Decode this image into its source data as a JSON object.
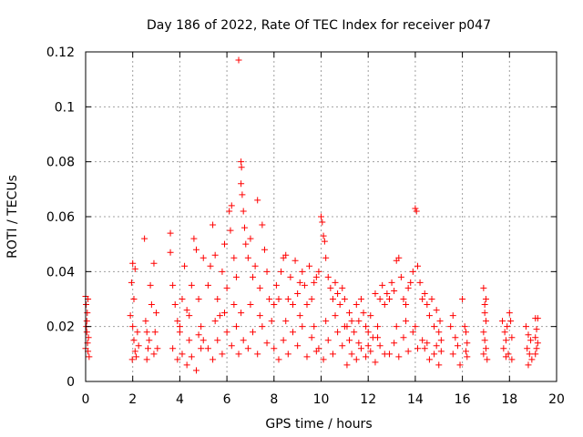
{
  "chart_data": {
    "type": "scatter",
    "title": "Day 186 of 2022, Rate Of TEC Index for receiver p047",
    "xlabel": "GPS time / hours",
    "ylabel": "ROTI / TECUs",
    "xlim": [
      0,
      20
    ],
    "ylim": [
      0,
      0.12
    ],
    "xticks": [
      0,
      2,
      4,
      6,
      8,
      10,
      12,
      14,
      16,
      18,
      20
    ],
    "xtick_labels": [
      "0",
      "2",
      "4",
      "6",
      "8",
      "10",
      "12",
      "14",
      "16",
      "18",
      "20"
    ],
    "yticks": [
      0,
      0.02,
      0.04,
      0.06,
      0.08,
      0.1,
      0.12
    ],
    "ytick_labels": [
      "0",
      "0.02",
      "0.04",
      "0.06",
      "0.08",
      "0.1",
      "0.12"
    ],
    "grid": true,
    "marker": "plus",
    "color": "#ff0000",
    "series": [
      {
        "name": "ROTI",
        "points": [
          [
            0.0,
            0.031
          ],
          [
            0.02,
            0.028
          ],
          [
            0.05,
            0.022
          ],
          [
            0.05,
            0.018
          ],
          [
            0.08,
            0.014
          ],
          [
            0.1,
            0.03
          ],
          [
            0.1,
            0.011
          ],
          [
            0.12,
            0.016
          ],
          [
            0.15,
            0.009
          ],
          [
            0.0,
            0.012
          ],
          [
            0.03,
            0.02
          ],
          [
            0.07,
            0.025
          ],
          [
            1.9,
            0.024
          ],
          [
            1.95,
            0.036
          ],
          [
            2.0,
            0.043
          ],
          [
            2.0,
            0.02
          ],
          [
            2.05,
            0.015
          ],
          [
            2.1,
            0.041
          ],
          [
            2.1,
            0.011
          ],
          [
            2.15,
            0.009
          ],
          [
            2.2,
            0.018
          ],
          [
            2.25,
            0.013
          ],
          [
            2.05,
            0.03
          ],
          [
            1.98,
            0.008
          ],
          [
            2.5,
            0.052
          ],
          [
            2.55,
            0.022
          ],
          [
            2.6,
            0.018
          ],
          [
            2.65,
            0.012
          ],
          [
            2.7,
            0.015
          ],
          [
            2.75,
            0.035
          ],
          [
            2.8,
            0.028
          ],
          [
            2.9,
            0.043
          ],
          [
            2.9,
            0.01
          ],
          [
            2.95,
            0.018
          ],
          [
            3.0,
            0.025
          ],
          [
            3.05,
            0.012
          ],
          [
            2.6,
            0.008
          ],
          [
            3.6,
            0.054
          ],
          [
            3.6,
            0.047
          ],
          [
            3.7,
            0.035
          ],
          [
            3.8,
            0.028
          ],
          [
            3.9,
            0.022
          ],
          [
            4.0,
            0.018
          ],
          [
            4.1,
            0.03
          ],
          [
            4.2,
            0.042
          ],
          [
            4.3,
            0.026
          ],
          [
            4.4,
            0.015
          ],
          [
            4.5,
            0.035
          ],
          [
            4.6,
            0.052
          ],
          [
            4.7,
            0.048
          ],
          [
            4.8,
            0.03
          ],
          [
            4.9,
            0.02
          ],
          [
            5.0,
            0.045
          ],
          [
            3.7,
            0.012
          ],
          [
            3.9,
            0.008
          ],
          [
            4.1,
            0.01
          ],
          [
            4.3,
            0.006
          ],
          [
            4.5,
            0.009
          ],
          [
            4.7,
            0.004
          ],
          [
            4.9,
            0.012
          ],
          [
            5.0,
            0.015
          ],
          [
            4.0,
            0.02
          ],
          [
            4.4,
            0.024
          ],
          [
            4.8,
            0.017
          ],
          [
            5.2,
            0.035
          ],
          [
            5.3,
            0.042
          ],
          [
            5.4,
            0.057
          ],
          [
            5.5,
            0.046
          ],
          [
            5.6,
            0.03
          ],
          [
            5.7,
            0.024
          ],
          [
            5.8,
            0.04
          ],
          [
            5.9,
            0.05
          ],
          [
            6.0,
            0.034
          ],
          [
            6.1,
            0.062
          ],
          [
            6.15,
            0.055
          ],
          [
            6.2,
            0.064
          ],
          [
            6.3,
            0.045
          ],
          [
            6.4,
            0.038
          ],
          [
            5.2,
            0.012
          ],
          [
            5.4,
            0.008
          ],
          [
            5.6,
            0.015
          ],
          [
            5.8,
            0.01
          ],
          [
            6.0,
            0.018
          ],
          [
            6.2,
            0.013
          ],
          [
            6.4,
            0.02
          ],
          [
            5.5,
            0.022
          ],
          [
            5.9,
            0.025
          ],
          [
            6.3,
            0.028
          ],
          [
            6.5,
            0.117
          ],
          [
            6.6,
            0.08
          ],
          [
            6.62,
            0.078
          ],
          [
            6.6,
            0.072
          ],
          [
            6.65,
            0.068
          ],
          [
            6.7,
            0.062
          ],
          [
            6.75,
            0.056
          ],
          [
            6.8,
            0.05
          ],
          [
            6.9,
            0.045
          ],
          [
            7.0,
            0.052
          ],
          [
            7.1,
            0.038
          ],
          [
            7.2,
            0.042
          ],
          [
            7.3,
            0.066
          ],
          [
            7.4,
            0.034
          ],
          [
            7.5,
            0.057
          ],
          [
            7.6,
            0.048
          ],
          [
            7.7,
            0.04
          ],
          [
            7.8,
            0.03
          ],
          [
            6.5,
            0.01
          ],
          [
            6.7,
            0.015
          ],
          [
            6.9,
            0.012
          ],
          [
            7.1,
            0.018
          ],
          [
            7.3,
            0.01
          ],
          [
            7.5,
            0.02
          ],
          [
            7.7,
            0.014
          ],
          [
            7.9,
            0.022
          ],
          [
            6.6,
            0.025
          ],
          [
            7.0,
            0.028
          ],
          [
            7.4,
            0.024
          ],
          [
            8.0,
            0.028
          ],
          [
            8.1,
            0.035
          ],
          [
            8.2,
            0.03
          ],
          [
            8.3,
            0.04
          ],
          [
            8.4,
            0.045
          ],
          [
            8.5,
            0.046
          ],
          [
            8.6,
            0.03
          ],
          [
            8.7,
            0.038
          ],
          [
            8.8,
            0.028
          ],
          [
            8.9,
            0.044
          ],
          [
            9.0,
            0.032
          ],
          [
            9.1,
            0.036
          ],
          [
            9.2,
            0.04
          ],
          [
            9.3,
            0.035
          ],
          [
            9.4,
            0.028
          ],
          [
            9.5,
            0.042
          ],
          [
            9.6,
            0.03
          ],
          [
            9.7,
            0.036
          ],
          [
            9.8,
            0.038
          ],
          [
            8.0,
            0.012
          ],
          [
            8.2,
            0.008
          ],
          [
            8.4,
            0.015
          ],
          [
            8.6,
            0.01
          ],
          [
            8.8,
            0.018
          ],
          [
            9.0,
            0.013
          ],
          [
            9.2,
            0.02
          ],
          [
            9.4,
            0.009
          ],
          [
            9.6,
            0.016
          ],
          [
            9.8,
            0.011
          ],
          [
            8.5,
            0.022
          ],
          [
            9.1,
            0.024
          ],
          [
            9.7,
            0.02
          ],
          [
            9.9,
            0.04
          ],
          [
            10.0,
            0.06
          ],
          [
            10.05,
            0.058
          ],
          [
            10.1,
            0.053
          ],
          [
            10.15,
            0.051
          ],
          [
            10.2,
            0.045
          ],
          [
            10.3,
            0.038
          ],
          [
            10.4,
            0.034
          ],
          [
            10.5,
            0.03
          ],
          [
            10.6,
            0.036
          ],
          [
            10.7,
            0.032
          ],
          [
            10.8,
            0.028
          ],
          [
            10.9,
            0.034
          ],
          [
            11.0,
            0.03
          ],
          [
            9.9,
            0.012
          ],
          [
            10.1,
            0.008
          ],
          [
            10.3,
            0.015
          ],
          [
            10.5,
            0.01
          ],
          [
            10.7,
            0.018
          ],
          [
            10.9,
            0.013
          ],
          [
            11.0,
            0.02
          ],
          [
            10.2,
            0.022
          ],
          [
            10.6,
            0.024
          ],
          [
            11.1,
            0.02
          ],
          [
            11.2,
            0.025
          ],
          [
            11.3,
            0.022
          ],
          [
            11.4,
            0.018
          ],
          [
            11.5,
            0.028
          ],
          [
            11.6,
            0.022
          ],
          [
            11.7,
            0.03
          ],
          [
            11.8,
            0.025
          ],
          [
            11.9,
            0.02
          ],
          [
            12.0,
            0.018
          ],
          [
            12.1,
            0.024
          ],
          [
            12.2,
            0.016
          ],
          [
            12.3,
            0.032
          ],
          [
            12.4,
            0.02
          ],
          [
            12.5,
            0.03
          ],
          [
            12.6,
            0.035
          ],
          [
            12.7,
            0.028
          ],
          [
            12.8,
            0.032
          ],
          [
            11.1,
            0.006
          ],
          [
            11.3,
            0.01
          ],
          [
            11.5,
            0.008
          ],
          [
            11.7,
            0.012
          ],
          [
            11.9,
            0.009
          ],
          [
            12.1,
            0.011
          ],
          [
            12.3,
            0.007
          ],
          [
            12.5,
            0.013
          ],
          [
            12.7,
            0.01
          ],
          [
            11.2,
            0.015
          ],
          [
            11.6,
            0.014
          ],
          [
            12.0,
            0.013
          ],
          [
            12.4,
            0.016
          ],
          [
            12.9,
            0.03
          ],
          [
            13.0,
            0.036
          ],
          [
            13.1,
            0.033
          ],
          [
            13.2,
            0.044
          ],
          [
            13.3,
            0.045
          ],
          [
            13.4,
            0.038
          ],
          [
            13.5,
            0.03
          ],
          [
            13.6,
            0.028
          ],
          [
            13.7,
            0.034
          ],
          [
            13.8,
            0.036
          ],
          [
            13.9,
            0.04
          ],
          [
            14.0,
            0.063
          ],
          [
            14.05,
            0.062
          ],
          [
            14.1,
            0.042
          ],
          [
            14.2,
            0.036
          ],
          [
            14.3,
            0.03
          ],
          [
            12.9,
            0.01
          ],
          [
            13.1,
            0.014
          ],
          [
            13.3,
            0.009
          ],
          [
            13.5,
            0.016
          ],
          [
            13.7,
            0.011
          ],
          [
            13.9,
            0.018
          ],
          [
            14.1,
            0.012
          ],
          [
            14.3,
            0.015
          ],
          [
            13.2,
            0.02
          ],
          [
            13.6,
            0.022
          ],
          [
            14.0,
            0.02
          ],
          [
            14.4,
            0.032
          ],
          [
            14.5,
            0.028
          ],
          [
            14.6,
            0.024
          ],
          [
            14.7,
            0.03
          ],
          [
            14.8,
            0.02
          ],
          [
            14.9,
            0.026
          ],
          [
            15.0,
            0.018
          ],
          [
            15.05,
            0.022
          ],
          [
            15.1,
            0.015
          ],
          [
            14.4,
            0.012
          ],
          [
            14.6,
            0.008
          ],
          [
            14.8,
            0.01
          ],
          [
            15.0,
            0.006
          ],
          [
            15.1,
            0.011
          ],
          [
            14.5,
            0.014
          ],
          [
            14.9,
            0.013
          ],
          [
            15.5,
            0.02
          ],
          [
            15.6,
            0.024
          ],
          [
            15.6,
            0.01
          ],
          [
            15.7,
            0.016
          ],
          [
            15.8,
            0.013
          ],
          [
            15.9,
            0.006
          ],
          [
            16.0,
            0.03
          ],
          [
            16.1,
            0.02
          ],
          [
            16.15,
            0.018
          ],
          [
            16.2,
            0.014
          ],
          [
            16.15,
            0.011
          ],
          [
            16.2,
            0.009
          ],
          [
            16.9,
            0.034
          ],
          [
            17.0,
            0.03
          ],
          [
            16.95,
            0.028
          ],
          [
            17.0,
            0.022
          ],
          [
            16.9,
            0.018
          ],
          [
            16.95,
            0.015
          ],
          [
            17.0,
            0.012
          ],
          [
            16.9,
            0.01
          ],
          [
            17.05,
            0.008
          ],
          [
            16.95,
            0.025
          ],
          [
            17.7,
            0.022
          ],
          [
            17.8,
            0.018
          ],
          [
            17.85,
            0.015
          ],
          [
            17.9,
            0.02
          ],
          [
            18.0,
            0.025
          ],
          [
            18.05,
            0.022
          ],
          [
            18.1,
            0.016
          ],
          [
            17.75,
            0.012
          ],
          [
            17.95,
            0.01
          ],
          [
            18.1,
            0.008
          ],
          [
            17.85,
            0.009
          ],
          [
            18.7,
            0.02
          ],
          [
            18.8,
            0.017
          ],
          [
            18.9,
            0.015
          ],
          [
            18.75,
            0.012
          ],
          [
            18.85,
            0.01
          ],
          [
            18.95,
            0.008
          ],
          [
            18.8,
            0.006
          ],
          [
            19.1,
            0.023
          ],
          [
            19.2,
            0.023
          ],
          [
            19.15,
            0.019
          ],
          [
            19.1,
            0.016
          ],
          [
            19.2,
            0.014
          ],
          [
            19.15,
            0.012
          ],
          [
            19.1,
            0.01
          ]
        ]
      }
    ]
  }
}
